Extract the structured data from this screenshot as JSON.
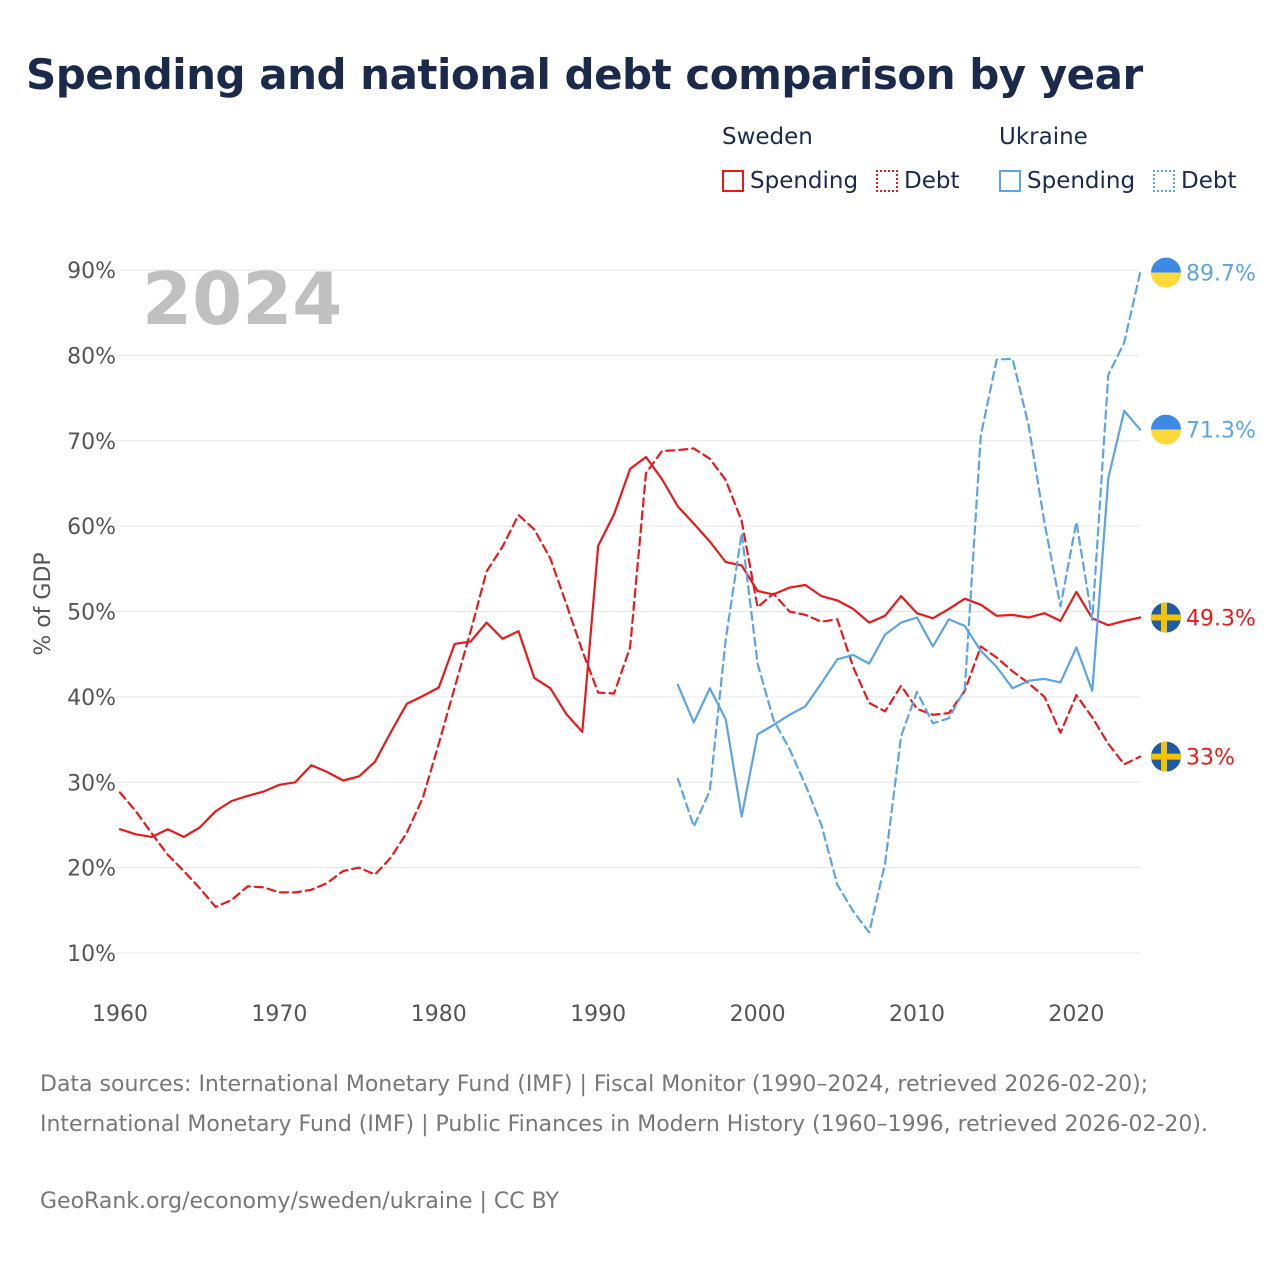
{
  "chart_data": {
    "type": "line",
    "title": "Spending and national debt comparison by year",
    "ylabel": "% of GDP",
    "xlabel": "",
    "xlim": [
      1960,
      2024
    ],
    "ylim": [
      10,
      90
    ],
    "x_ticks": [
      1960,
      1970,
      1980,
      1990,
      2000,
      2010,
      2020
    ],
    "x_tick_labels": [
      "1960",
      "1970",
      "1980",
      "1990",
      "2000",
      "2010",
      "2020"
    ],
    "y_ticks": [
      10,
      20,
      30,
      40,
      50,
      60,
      70,
      80,
      90
    ],
    "y_tick_labels": [
      "10%",
      "20%",
      "30%",
      "40%",
      "50%",
      "60%",
      "70%",
      "80%",
      "90%"
    ],
    "year_label": "2024",
    "legend": {
      "groups": [
        {
          "country": "Sweden",
          "items": [
            "Spending",
            "Debt"
          ]
        },
        {
          "country": "Ukraine",
          "items": [
            "Spending",
            "Debt"
          ]
        }
      ],
      "placement": "top-right"
    },
    "series": [
      {
        "name": "Sweden Spending",
        "country": "Sweden",
        "metric": "Spending",
        "style": "solid",
        "color": "#e8191b",
        "end_label": "49.3%",
        "start_year": 1960,
        "values": [
          24.5,
          23.9,
          23.6,
          24.5,
          23.6,
          24.7,
          26.6,
          27.8,
          28.4,
          28.9,
          29.7,
          30.0,
          32.0,
          31.2,
          30.2,
          30.7,
          32.4,
          35.9,
          39.2,
          40.1,
          41.1,
          46.2,
          46.5,
          48.7,
          46.8,
          47.7,
          42.2,
          41.0,
          38.0,
          35.9,
          57.7,
          61.4,
          66.7,
          68.1,
          65.5,
          62.3,
          60.3,
          58.2,
          55.8,
          55.4,
          52.4,
          52.0,
          52.8,
          53.1,
          51.8,
          51.3,
          50.3,
          48.7,
          49.5,
          51.8,
          49.8,
          49.2,
          50.3,
          51.5,
          50.8,
          49.5,
          49.6,
          49.3,
          49.8,
          48.9,
          52.3,
          49.2,
          48.4,
          48.9,
          49.3
        ]
      },
      {
        "name": "Sweden Debt",
        "country": "Sweden",
        "metric": "Debt",
        "style": "dashed",
        "color": "#e8191b",
        "end_label": "33%",
        "start_year": 1960,
        "values": [
          28.8,
          26.6,
          24.0,
          21.5,
          19.6,
          17.6,
          15.4,
          16.2,
          17.8,
          17.7,
          17.1,
          17.1,
          17.4,
          18.2,
          19.6,
          20.0,
          19.2,
          21.2,
          24.1,
          28.2,
          34.5,
          41.1,
          47.7,
          54.7,
          57.6,
          61.3,
          59.6,
          56.2,
          50.9,
          45.4,
          40.5,
          40.4,
          45.8,
          66.2,
          68.8,
          68.9,
          69.1,
          67.9,
          65.4,
          60.6,
          50.5,
          52.1,
          50.0,
          49.6,
          48.8,
          49.1,
          43.5,
          39.3,
          38.3,
          41.3,
          38.6,
          37.9,
          38.1,
          40.7,
          45.9,
          44.6,
          43.0,
          41.6,
          40.0,
          35.8,
          40.2,
          37.6,
          34.5,
          32.1,
          33.0
        ]
      },
      {
        "name": "Ukraine Spending",
        "country": "Ukraine",
        "metric": "Spending",
        "style": "solid",
        "color": "#5ba4e5",
        "end_label": "71.3%",
        "start_year": 1995,
        "values": [
          41.4,
          37.0,
          41.0,
          37.4,
          26.0,
          35.6,
          36.7,
          37.9,
          38.9,
          41.6,
          44.4,
          44.9,
          43.9,
          47.3,
          48.7,
          49.3,
          45.9,
          49.1,
          48.3,
          45.4,
          43.5,
          41.0,
          41.9,
          42.1,
          41.7,
          45.8,
          40.7,
          65.6,
          73.5,
          71.3
        ]
      },
      {
        "name": "Ukraine Debt",
        "country": "Ukraine",
        "metric": "Debt",
        "style": "dashed",
        "color": "#5ba4e5",
        "end_label": "89.7%",
        "start_year": 1995,
        "values": [
          30.4,
          24.8,
          29.0,
          46.7,
          59.2,
          43.9,
          37.3,
          33.9,
          29.7,
          25.0,
          18.0,
          14.9,
          12.4,
          20.5,
          35.4,
          40.6,
          36.9,
          37.5,
          40.9,
          70.6,
          79.5,
          79.6,
          71.8,
          60.4,
          50.6,
          60.5,
          49.0,
          77.7,
          81.5,
          89.7
        ]
      }
    ]
  },
  "footer": {
    "sources": "Data sources: International Monetary Fund (IMF) | Fiscal Monitor (1990–2024, retrieved 2026-02-20); International Monetary Fund (IMF) | Public Finances in Modern History (1960–1996, retrieved 2026-02-20).",
    "site": "GeoRank.org/economy/sweden/ukraine | CC BY"
  },
  "colors": {
    "sweden": "#e8191b",
    "ukraine": "#5ba4e5",
    "title": "#1b2a4a",
    "grid": "#e6e6e6",
    "axis_text": "#555555",
    "year_label": "#c0c0c0",
    "footer": "#777777",
    "flag_se_blue": "#1d5aa8",
    "flag_se_yellow": "#f5c400",
    "flag_ua_blue": "#3d8ae6",
    "flag_ua_yellow": "#fbd93b"
  },
  "flags": {
    "sweden": "sweden-flag-icon",
    "ukraine": "ukraine-flag-icon"
  }
}
